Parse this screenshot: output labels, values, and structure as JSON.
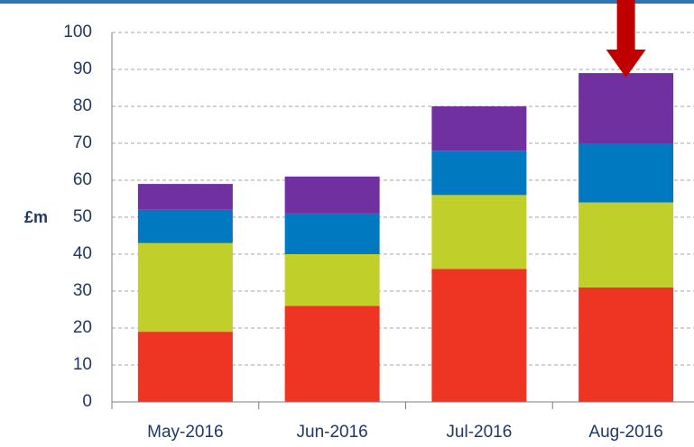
{
  "chart_data": {
    "type": "stacked_bar",
    "y_label": "£m",
    "categories": [
      "May-2016",
      "Jun-2016",
      "Jul-2016",
      "Aug-2016"
    ],
    "series": [
      {
        "color": "#ee3524",
        "values": [
          19,
          26,
          36,
          31
        ]
      },
      {
        "color": "#c0cf2a",
        "values": [
          24,
          14,
          20,
          23
        ]
      },
      {
        "color": "#0079c1",
        "values": [
          9,
          11,
          12,
          16
        ]
      },
      {
        "color": "#7030a0",
        "values": [
          7,
          10,
          12,
          19
        ]
      }
    ],
    "ylim": [
      0,
      100
    ],
    "yticks": [
      0,
      10,
      20,
      30,
      40,
      50,
      60,
      70,
      80,
      90,
      100
    ],
    "grid": true
  }
}
